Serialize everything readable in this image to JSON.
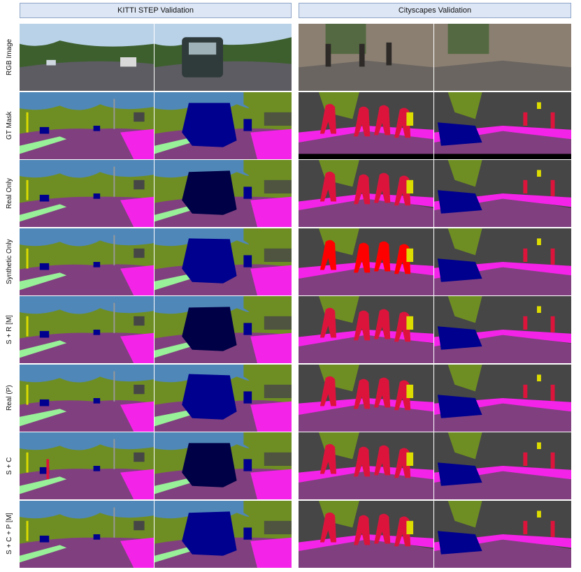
{
  "headers": [
    "KITTI STEP Validation",
    "Cityscapes Validation"
  ],
  "row_labels": [
    "RGB Image",
    "GT Mask",
    "Real Only",
    "Synthetic Only",
    "S + R [M]",
    "Real (P)",
    "S + C",
    "S + C + P [M]"
  ],
  "colors": {
    "sky": "#4f87b8",
    "vegetation": "#6e8e23",
    "building": "#464646",
    "road": "#80407f",
    "sidewalk": "#f423e8",
    "terrain": "#98f098",
    "car": "#00008e",
    "truck": "#000046",
    "person": "#dc143c",
    "rider": "#ff0000",
    "sign": "#dcdc00",
    "pole": "#999999",
    "rgb_sky": "#b9d2e8",
    "rgb_tree": "#3d5f2e",
    "rgb_road": "#5c5c62",
    "rgb_street": "#6a6560",
    "rgb_wall": "#8b7f72"
  }
}
